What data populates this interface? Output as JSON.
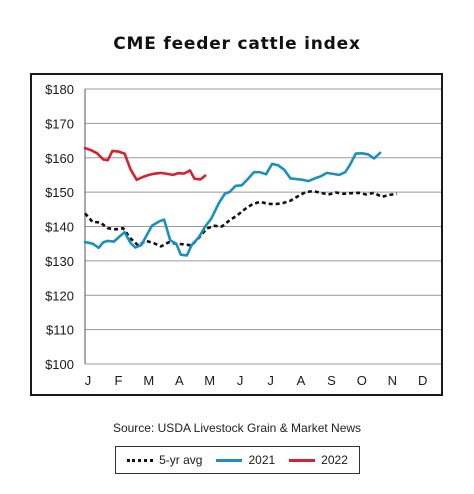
{
  "chart_data": {
    "type": "line",
    "title": "CME feeder cattle index",
    "source": "Source: USDA Livestock Grain & Market News",
    "xlabel": "",
    "ylabel": "",
    "ylim": [
      100,
      180
    ],
    "y_ticks": [
      100,
      110,
      120,
      130,
      140,
      150,
      160,
      170,
      180
    ],
    "y_tick_labels": [
      "$100",
      "$110",
      "$120",
      "$130",
      "$140",
      "$150",
      "$160",
      "$170",
      "$180"
    ],
    "month_labels": [
      "J",
      "F",
      "M",
      "A",
      "M",
      "J",
      "J",
      "A",
      "S",
      "O",
      "N",
      "D"
    ],
    "grid": true,
    "legend_position": "bottom",
    "series": [
      {
        "name": "5-yr avg",
        "color": "#111111",
        "style": "dotted",
        "points": [
          [
            0.0,
            143.8
          ],
          [
            0.25,
            141.3
          ],
          [
            0.5,
            141.2
          ],
          [
            0.75,
            139.5
          ],
          [
            1.0,
            139.2
          ],
          [
            1.25,
            139.5
          ],
          [
            1.5,
            136.5
          ],
          [
            1.75,
            134.5
          ],
          [
            2.0,
            135.8
          ],
          [
            2.25,
            135.2
          ],
          [
            2.5,
            134.2
          ],
          [
            2.75,
            135.4
          ],
          [
            3.0,
            135.0
          ],
          [
            3.25,
            134.8
          ],
          [
            3.5,
            134.5
          ],
          [
            3.75,
            136.8
          ],
          [
            4.0,
            139.4
          ],
          [
            4.25,
            140.2
          ],
          [
            4.5,
            140.0
          ],
          [
            4.75,
            141.8
          ],
          [
            5.0,
            143.2
          ],
          [
            5.25,
            145.0
          ],
          [
            5.5,
            146.5
          ],
          [
            5.75,
            147.2
          ],
          [
            6.0,
            146.6
          ],
          [
            6.25,
            146.5
          ],
          [
            6.5,
            146.8
          ],
          [
            6.75,
            147.5
          ],
          [
            7.0,
            148.8
          ],
          [
            7.25,
            150.0
          ],
          [
            7.5,
            150.3
          ],
          [
            7.75,
            149.8
          ],
          [
            8.0,
            149.3
          ],
          [
            8.25,
            149.9
          ],
          [
            8.5,
            149.5
          ],
          [
            8.75,
            149.7
          ],
          [
            9.0,
            149.8
          ],
          [
            9.25,
            149.3
          ],
          [
            9.5,
            149.8
          ],
          [
            9.75,
            148.6
          ],
          [
            10.0,
            149.2
          ],
          [
            10.25,
            149.5
          ]
        ]
      },
      {
        "name": "2021",
        "color": "#1a90bf",
        "style": "solid",
        "points": [
          [
            0.0,
            135.5
          ],
          [
            0.25,
            135.0
          ],
          [
            0.45,
            133.8
          ],
          [
            0.6,
            135.4
          ],
          [
            0.75,
            135.8
          ],
          [
            0.95,
            135.6
          ],
          [
            1.15,
            137.2
          ],
          [
            1.3,
            138.3
          ],
          [
            1.5,
            135.2
          ],
          [
            1.65,
            133.9
          ],
          [
            1.85,
            134.6
          ],
          [
            2.0,
            137.0
          ],
          [
            2.2,
            140.2
          ],
          [
            2.45,
            141.5
          ],
          [
            2.6,
            142.0
          ],
          [
            2.8,
            136.0
          ],
          [
            3.0,
            135.0
          ],
          [
            3.15,
            131.8
          ],
          [
            3.35,
            131.6
          ],
          [
            3.5,
            134.5
          ],
          [
            3.75,
            137.0
          ],
          [
            3.95,
            140.0
          ],
          [
            4.15,
            142.3
          ],
          [
            4.4,
            146.8
          ],
          [
            4.6,
            149.6
          ],
          [
            4.75,
            150.0
          ],
          [
            4.95,
            151.8
          ],
          [
            5.15,
            152.0
          ],
          [
            5.35,
            153.8
          ],
          [
            5.55,
            155.8
          ],
          [
            5.75,
            155.8
          ],
          [
            5.95,
            155.2
          ],
          [
            6.15,
            158.2
          ],
          [
            6.35,
            157.8
          ],
          [
            6.55,
            156.5
          ],
          [
            6.75,
            154.0
          ],
          [
            6.95,
            153.8
          ],
          [
            7.15,
            153.6
          ],
          [
            7.35,
            153.2
          ],
          [
            7.55,
            154.0
          ],
          [
            7.75,
            154.6
          ],
          [
            7.95,
            155.6
          ],
          [
            8.15,
            155.3
          ],
          [
            8.35,
            155.0
          ],
          [
            8.55,
            155.8
          ],
          [
            8.7,
            157.8
          ],
          [
            8.9,
            161.2
          ],
          [
            9.1,
            161.3
          ],
          [
            9.3,
            161.0
          ],
          [
            9.5,
            159.8
          ],
          [
            9.7,
            161.4
          ]
        ]
      },
      {
        "name": "2022",
        "color": "#d6222d",
        "style": "solid",
        "points": [
          [
            0.0,
            162.8
          ],
          [
            0.2,
            162.2
          ],
          [
            0.4,
            161.3
          ],
          [
            0.6,
            159.5
          ],
          [
            0.75,
            159.3
          ],
          [
            0.9,
            162.0
          ],
          [
            1.1,
            161.8
          ],
          [
            1.3,
            161.2
          ],
          [
            1.5,
            156.6
          ],
          [
            1.7,
            153.6
          ],
          [
            1.9,
            154.4
          ],
          [
            2.1,
            155.0
          ],
          [
            2.3,
            155.4
          ],
          [
            2.5,
            155.6
          ],
          [
            2.7,
            155.3
          ],
          [
            2.9,
            155.0
          ],
          [
            3.05,
            155.5
          ],
          [
            3.25,
            155.4
          ],
          [
            3.45,
            156.3
          ],
          [
            3.6,
            153.9
          ],
          [
            3.8,
            153.7
          ],
          [
            3.95,
            154.8
          ]
        ]
      }
    ]
  }
}
